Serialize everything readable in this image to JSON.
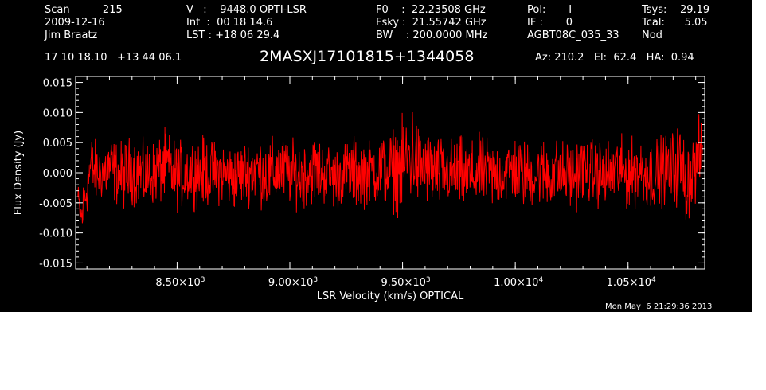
{
  "header": {
    "col1": [
      "Scan          215",
      "2009-12-16",
      "Jim Braatz"
    ],
    "col2": [
      "V   :    9448.0 OPTI-LSR",
      "Int  :  00 18 14.6",
      "LST : +18 06 29.4"
    ],
    "col3": [
      "F0    :  22.23508 GHz",
      "Fsky :  21.55742 GHz",
      "BW    : 200.0000 MHz"
    ],
    "col4": [
      "Pol:       I",
      "IF :       0",
      "AGBT08C_035_33"
    ],
    "col5": [
      "Tsys:    29.19",
      "Tcal:      5.05",
      "Nod"
    ],
    "coords": "17 10 18.10   +13 44 06.1",
    "source": "2MASXJ17101815+1344058",
    "azelha": "Az: 210.2   El:  62.4   HA:  0.94",
    "timestamp": "Mon May  6 21:29:36 2013"
  },
  "colors": {
    "background": "#000000",
    "axes": "#ffffff",
    "trace": "#ff0000"
  },
  "chart_data": {
    "type": "line",
    "xlabel": "LSR Velocity (km/s) OPTICAL",
    "ylabel": "Flux Density (Jy)",
    "xlim": [
      8050,
      10840
    ],
    "ylim": [
      -0.016,
      0.016
    ],
    "x_ticks": [
      {
        "value": 8500,
        "mantissa": "8.50",
        "exp": "3"
      },
      {
        "value": 9000,
        "mantissa": "9.00",
        "exp": "3"
      },
      {
        "value": 9500,
        "mantissa": "9.50",
        "exp": "3"
      },
      {
        "value": 10000,
        "mantissa": "1.00",
        "exp": "4"
      },
      {
        "value": 10500,
        "mantissa": "1.05",
        "exp": "4"
      }
    ],
    "y_ticks": [
      {
        "value": -0.015,
        "label": "-0.015"
      },
      {
        "value": -0.01,
        "label": "-0.010"
      },
      {
        "value": -0.005,
        "label": "-0.005"
      },
      {
        "value": 0.0,
        "label": "0.000"
      },
      {
        "value": 0.005,
        "label": "0.005"
      },
      {
        "value": 0.01,
        "label": "0.010"
      },
      {
        "value": 0.015,
        "label": "0.015"
      }
    ],
    "series": [
      {
        "x": [
          8060,
          8075,
          8090,
          8105,
          8120,
          8140,
          8160,
          8180,
          8200,
          8230,
          8260,
          8300,
          8350,
          8400,
          8450,
          8500,
          8550,
          8600,
          8650,
          8700,
          8750,
          8800,
          8850,
          8900,
          8950,
          9000,
          9050,
          9100,
          9150,
          9200,
          9250,
          9300,
          9350,
          9400,
          9450,
          9500,
          9530,
          9550,
          9570,
          9600,
          9650,
          9700,
          9750,
          9800,
          9850,
          9900,
          9950,
          10000,
          10050,
          10100,
          10150,
          10200,
          10250,
          10300,
          10350,
          10400,
          10450,
          10500,
          10550,
          10600,
          10650,
          10700,
          10730,
          10760,
          10780,
          10800,
          10815,
          10830
        ],
        "y_high": [
          -0.001,
          -0.004,
          0.002,
          0.005,
          0.007,
          0.006,
          0.005,
          0.006,
          0.007,
          0.006,
          0.006,
          0.007,
          0.006,
          0.006,
          0.008,
          0.006,
          0.006,
          0.007,
          0.006,
          0.006,
          0.005,
          0.006,
          0.007,
          0.006,
          0.007,
          0.006,
          0.006,
          0.007,
          0.006,
          0.005,
          0.006,
          0.007,
          0.006,
          0.007,
          0.008,
          0.01,
          0.012,
          0.013,
          0.009,
          0.008,
          0.007,
          0.006,
          0.007,
          0.006,
          0.007,
          0.006,
          0.006,
          0.007,
          0.006,
          0.006,
          0.007,
          0.006,
          0.006,
          0.007,
          0.006,
          0.006,
          0.007,
          0.006,
          0.007,
          0.006,
          0.007,
          0.008,
          0.009,
          0.006,
          0.007,
          0.007,
          0.01,
          0.009
        ],
        "y_low": [
          -0.008,
          -0.012,
          -0.01,
          -0.007,
          -0.005,
          -0.006,
          -0.005,
          -0.006,
          -0.005,
          -0.006,
          -0.007,
          -0.006,
          -0.007,
          -0.006,
          -0.006,
          -0.007,
          -0.006,
          -0.007,
          -0.006,
          -0.006,
          -0.007,
          -0.006,
          -0.006,
          -0.007,
          -0.006,
          -0.006,
          -0.007,
          -0.006,
          -0.006,
          -0.007,
          -0.006,
          -0.007,
          -0.006,
          -0.006,
          -0.007,
          -0.008,
          -0.007,
          -0.006,
          -0.007,
          -0.006,
          -0.007,
          -0.006,
          -0.007,
          -0.007,
          -0.006,
          -0.007,
          -0.006,
          -0.006,
          -0.007,
          -0.006,
          -0.007,
          -0.006,
          -0.007,
          -0.006,
          -0.006,
          -0.007,
          -0.006,
          -0.007,
          -0.006,
          -0.007,
          -0.006,
          -0.007,
          -0.006,
          -0.01,
          -0.007,
          -0.006,
          -0.004,
          -0.001
        ]
      }
    ]
  }
}
